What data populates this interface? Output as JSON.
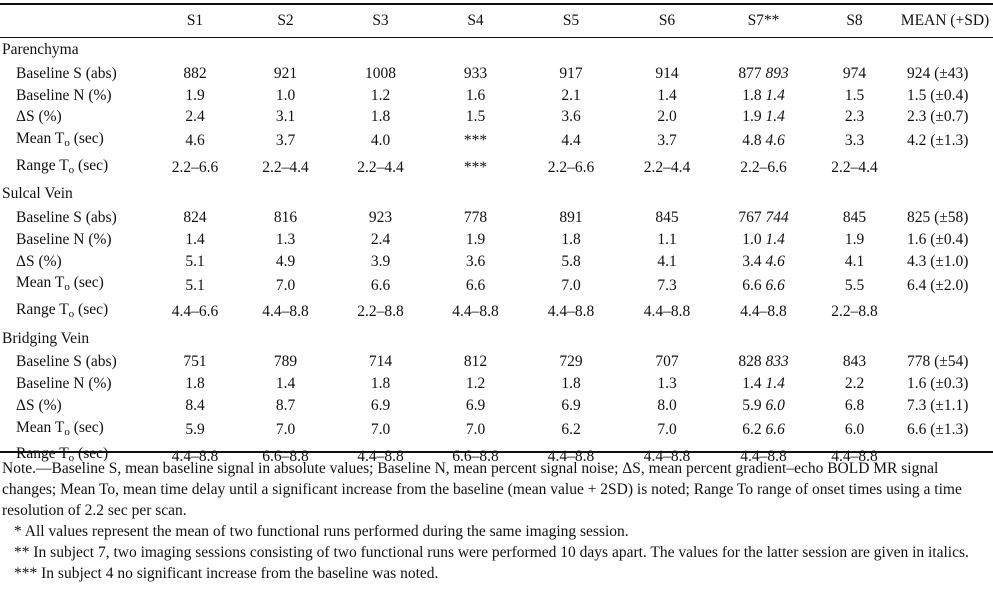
{
  "columns": [
    "S1",
    "S2",
    "S3",
    "S4",
    "S5",
    "S6",
    "S7**",
    "S8",
    "MEAN (+SD)"
  ],
  "sections": [
    {
      "title": "Parenchyma",
      "rows": [
        {
          "label": "Baseline S (abs)",
          "values": [
            "882",
            "921",
            "1008",
            "933",
            "917",
            "914",
            "877",
            "974",
            "924 (±43)"
          ],
          "s7_italic": "893"
        },
        {
          "label": "Baseline N (%)",
          "values": [
            "1.9",
            "1.0",
            "1.2",
            "1.6",
            "2.1",
            "1.4",
            "1.8",
            "1.5",
            "1.5 (±0.4)"
          ],
          "s7_italic": "1.4"
        },
        {
          "label": "ΔS (%)",
          "values": [
            "2.4",
            "3.1",
            "1.8",
            "1.5",
            "3.6",
            "2.0",
            "1.9",
            "2.3",
            "2.3 (±0.7)"
          ],
          "s7_italic": "1.4"
        },
        {
          "label": "Mean T",
          "sub": "o",
          "label_suffix": " (sec)",
          "values": [
            "4.6",
            "3.7",
            "4.0",
            "***",
            "4.4",
            "3.7",
            "4.8",
            "3.3",
            "4.2 (±1.3)"
          ],
          "s7_italic": "4.6"
        },
        {
          "label": "Range T",
          "sub": "o",
          "label_suffix": " (sec)",
          "values": [
            "2.2–6.6",
            "2.2–4.4",
            "2.2–4.4",
            "***",
            "2.2–6.6",
            "2.2–4.4",
            "2.2–6.6",
            "2.2–4.4",
            ""
          ],
          "s7_italic": ""
        }
      ]
    },
    {
      "title": "Sulcal Vein",
      "rows": [
        {
          "label": "Baseline S (abs)",
          "values": [
            "824",
            "816",
            "923",
            "778",
            "891",
            "845",
            "767",
            "845",
            "825 (±58)"
          ],
          "s7_italic": "744"
        },
        {
          "label": "Baseline N (%)",
          "values": [
            "1.4",
            "1.3",
            "2.4",
            "1.9",
            "1.8",
            "1.1",
            "1.0",
            "1.9",
            "1.6 (±0.4)"
          ],
          "s7_italic": "1.4"
        },
        {
          "label": "ΔS (%)",
          "values": [
            "5.1",
            "4.9",
            "3.9",
            "3.6",
            "5.8",
            "4.1",
            "3.4",
            "4.1",
            "4.3 (±1.0)"
          ],
          "s7_italic": "4.6"
        },
        {
          "label": "Mean T",
          "sub": "o",
          "label_suffix": " (sec)",
          "values": [
            "5.1",
            "7.0",
            "6.6",
            "6.6",
            "7.0",
            "7.3",
            "6.6",
            "5.5",
            "6.4 (±2.0)"
          ],
          "s7_italic": "6.6"
        },
        {
          "label": "Range T",
          "sub": "o",
          "label_suffix": " (sec)",
          "values": [
            "4.4–6.6",
            "4.4–8.8",
            "2.2–8.8",
            "4.4–8.8",
            "4.4–8.8",
            "4.4–8.8",
            "4.4–8.8",
            "2.2–8.8",
            ""
          ],
          "s7_italic": ""
        }
      ]
    },
    {
      "title": "Bridging Vein",
      "rows": [
        {
          "label": "Baseline S (abs)",
          "values": [
            "751",
            "789",
            "714",
            "812",
            "729",
            "707",
            "828",
            "843",
            "778 (±54)"
          ],
          "s7_italic": "833"
        },
        {
          "label": "Baseline N (%)",
          "values": [
            "1.8",
            "1.4",
            "1.8",
            "1.2",
            "1.8",
            "1.3",
            "1.4",
            "2.2",
            "1.6 (±0.3)"
          ],
          "s7_italic": "1.4"
        },
        {
          "label": "ΔS (%)",
          "values": [
            "8.4",
            "8.7",
            "6.9",
            "6.9",
            "6.9",
            "8.0",
            "5.9",
            "6.8",
            "7.3 (±1.1)"
          ],
          "s7_italic": "6.0"
        },
        {
          "label": "Mean T",
          "sub": "o",
          "label_suffix": " (sec)",
          "values": [
            "5.9",
            "7.0",
            "7.0",
            "7.0",
            "6.2",
            "7.0",
            "6.2",
            "6.0",
            "6.6 (±1.3)"
          ],
          "s7_italic": "6.6"
        },
        {
          "label": "Range T",
          "sub": "o",
          "label_suffix": " (sec)",
          "values": [
            "4.4–8.8",
            "6.6–8.8",
            "4.4–8.8",
            "6.6–8.8",
            "4.4–8.8",
            "4.4–8.8",
            "4.4–8.8",
            "4.4–8.8",
            ""
          ],
          "s7_italic": ""
        }
      ]
    }
  ],
  "notes": {
    "note": "Note.—Baseline S, mean baseline signal in absolute values; Baseline N, mean percent signal noise; ΔS, mean percent gradient–echo BOLD MR signal changes; Mean To, mean time delay until a significant increase from the baseline (mean value + 2SD) is noted; Range To range of onset times using a time resolution of 2.2 sec per scan.",
    "footnote1": "* All values represent the mean of two functional runs performed during the same imaging session.",
    "footnote2": "** In subject 7, two imaging sessions consisting of two functional runs were performed 10 days apart. The values for the latter session are given in italics.",
    "footnote3": "*** In subject 4 no significant increase from the baseline was noted."
  }
}
